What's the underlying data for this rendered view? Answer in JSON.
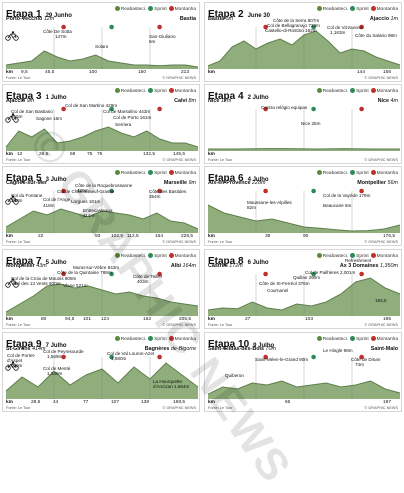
{
  "colors": {
    "reabastecim": "#5a8a3a",
    "sprint": "#2e8b57",
    "montanha": "#c0302a",
    "profile_fill": "#8fae7c",
    "profile_top": "#5e7f4c"
  },
  "legend": {
    "reabastecim": "Reabasteci.",
    "sprint": "Sprint",
    "montanha": "Montanha"
  },
  "watermark": "© GRAPHIC NEWS",
  "stages": [
    {
      "title": "Etapa 1",
      "date": "29 Junho",
      "start": "Porto-Vecchio",
      "length": "12m",
      "finish": "Bastia",
      "finish_len": "",
      "labels": [
        "Côte De Sotta",
        "147m",
        "Solaro",
        "San-Giuliano",
        "5m"
      ],
      "km": [
        "km",
        "9,5",
        "45,5",
        "100",
        "150",
        "213"
      ],
      "source": "Fonte: Le Tour",
      "credit": "© GRAPHIC NEWS"
    },
    {
      "title": "Etapa 2",
      "date": "June 30",
      "start": "Bastia",
      "length": "5m",
      "finish": "Ajaccio",
      "finish_len": "1m",
      "labels": [
        "Côte de la Serra 807m",
        "Col de Bellagranajo 723m",
        "Castello-di-Rostino 162m",
        "Col de Vizzavona",
        "1,163m",
        "Côte du Salario 98m"
      ],
      "km": [
        "km",
        "144",
        "156"
      ],
      "source": "",
      "credit": "© GRAPHIC NEWS"
    },
    {
      "title": "Etapa 3",
      "date": "1 Julho",
      "start": "Ajaccio",
      "length": "9m",
      "finish": "Calvi",
      "finish_len": "8m",
      "labels": [
        "Col de San Martino 429m",
        "Col de San Bastiano",
        "415m",
        "Sagone 16m",
        "Col de Marsolino 443m",
        "Col de Porto 161m",
        "Serriera"
      ],
      "km": [
        "km",
        "12",
        "26,5",
        "58",
        "75",
        "75",
        "132,5",
        "145,5"
      ],
      "source": "Fonte: Le Tour",
      "credit": "© GRAPHIC NEWS"
    },
    {
      "title": "Etapa 4",
      "date": "2 Julho",
      "start": "Nice",
      "length": "12m",
      "finish": "Nice",
      "finish_len": "4m",
      "labels": [
        "Contra relógio equipas",
        "Nice 25m"
      ],
      "km": [
        "km"
      ],
      "source": "Fonte: Le Tour",
      "credit": "© GRAPHIC NEWS"
    },
    {
      "title": "Etapa 5",
      "date": "3 Julho",
      "start": "Cagnes-sur-Mer",
      "length": "",
      "finish": "Marseille",
      "finish_len": "9m",
      "labels": [
        "Côte de la Roquebrussanne",
        "429m",
        "Col de l'Ange",
        "Lorgues 181m",
        "Col de Châteauneuf-Grasse",
        "418m",
        "Côte des Bastides",
        "354m",
        "Col du Fontane",
        "388m",
        "Entrecasteaux",
        "114m"
      ],
      "km": [
        "km",
        "22",
        "93",
        "102,5",
        "112,5",
        "164",
        "228,5"
      ],
      "source": "Fonte: Le Tour",
      "credit": "© GRAPHIC NEWS"
    },
    {
      "title": "Etapa 6",
      "date": "4 Julho",
      "start": "Aix-en-Provence",
      "length": "228m",
      "finish": "Montpellier",
      "finish_len": "56m",
      "labels": [
        "Col de la Vayède 179m",
        "Maussane-les-Alpilles",
        "82m",
        "Beaucaire 5m"
      ],
      "km": [
        "km",
        "38",
        "90",
        "176,5"
      ],
      "source": "Fonte: Le Tour",
      "credit": "© GRAPHIC NEWS"
    },
    {
      "title": "Etapa 7",
      "date": "5 Julho",
      "start": "Montpellier",
      "length": "43m",
      "finish": "Albi",
      "finish_len": "164m",
      "labels": [
        "Murat-sur-Vèbre 843m",
        "Côte de la Quintaine 788m",
        "Col de la Croix de Mounis 808m",
        "Côte de Teillet",
        "403m",
        "Col des 13 Vents 600m",
        "Vlane 521m"
      ],
      "km": [
        "km",
        "80",
        "94,5",
        "101",
        "124",
        "162",
        "205,5"
      ],
      "source": "Fonte: Le Tour",
      "credit": "© GRAPHIC NEWS"
    },
    {
      "title": "Etapa 8",
      "date": "6 Julho",
      "start": "Castres",
      "length": "172m",
      "finish": "Ax 3 Domaines",
      "finish_len": "1,350m",
      "labels": [
        "Refreshment",
        "Col de Pailhères 2,001m",
        "Côte de St-Ferréol 376m",
        "Quillan 290m",
        "Cournanel",
        "193,5"
      ],
      "km": [
        "km",
        "27",
        "103",
        "195"
      ],
      "source": "Fonte: Le Tour",
      "credit": "© GRAPHIC NEWS"
    },
    {
      "title": "Etapa 9",
      "date": "7 Julho",
      "start": "St-Girons",
      "length": "414m",
      "finish": "Bagnères",
      "finish_len": "de-Bigorre",
      "labels": [
        "Col de Portet-",
        "d'Aspet",
        "1,069m",
        "Col de Peyresourde",
        "1,569m",
        "Col de Menté",
        "1,349m",
        "Col de Val Louron-Azet",
        "1,580m",
        "La Hourquette",
        "d'Ancizan 1,564m"
      ],
      "km": [
        "km",
        "28,5",
        "44",
        "77",
        "107",
        "138",
        "168,5"
      ],
      "source": "Fonte: Le Tour",
      "credit": "© GRAPHIC NEWS"
    },
    {
      "title": "Etapa 10",
      "date": "9 Julho",
      "start": "Saint-Gildas-des-Bois",
      "length": "70m",
      "finish": "Saint-Malo",
      "finish_len": "",
      "labels": [
        "Le Hingle 98m",
        "Saint-Méen-le-Grand 90m",
        "Côte de Dinan",
        "74m",
        "Quiberon"
      ],
      "km": [
        "km",
        "65",
        "197"
      ],
      "source": "Fonte: Le Tour",
      "credit": "© GRAPHIC NEWS"
    }
  ]
}
